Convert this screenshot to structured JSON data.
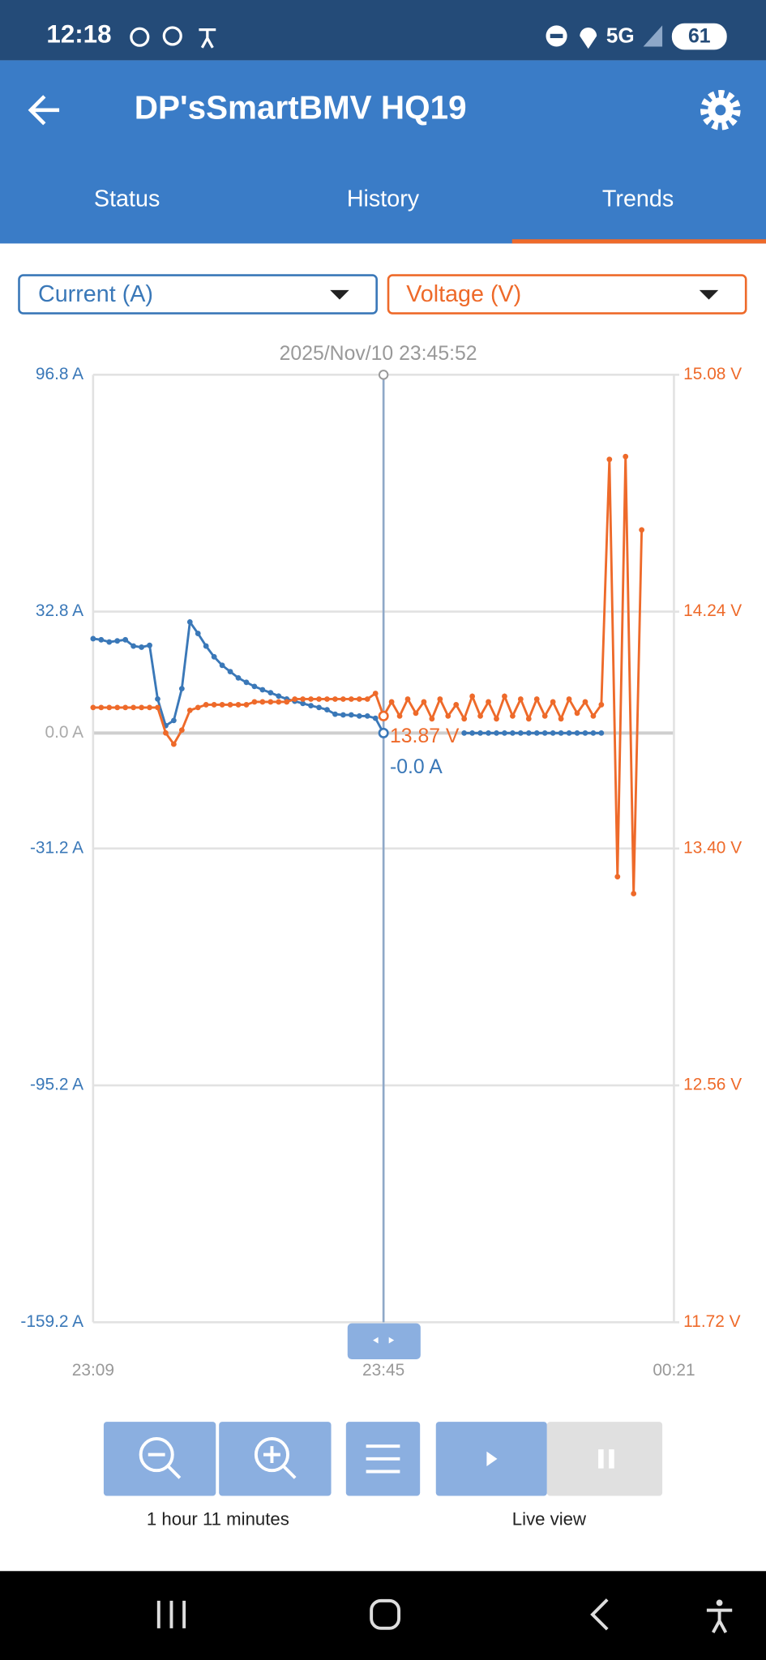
{
  "status_bar": {
    "time": "12:18",
    "network": "5G",
    "battery": "61"
  },
  "app_bar": {
    "title": "DP'sSmartBMV HQ19"
  },
  "tabs": [
    "Status",
    "History",
    "Trends"
  ],
  "chart_data": {
    "type": "line",
    "x": [
      "23:09",
      "23:10",
      "23:11",
      "23:12",
      "23:13",
      "23:14",
      "23:15",
      "23:16",
      "23:17",
      "23:18",
      "23:19",
      "23:20",
      "23:21",
      "23:22",
      "23:23",
      "23:24",
      "23:25",
      "23:26",
      "23:27",
      "23:28",
      "23:29",
      "23:30",
      "23:31",
      "23:32",
      "23:33",
      "23:34",
      "23:35",
      "23:36",
      "23:37",
      "23:38",
      "23:39",
      "23:40",
      "23:41",
      "23:42",
      "23:43",
      "23:44",
      "23:45",
      "23:46",
      "23:47",
      "23:48",
      "23:49",
      "23:50",
      "23:51",
      "23:52",
      "23:53",
      "23:54",
      "23:55",
      "23:56",
      "23:57",
      "23:58",
      "23:59",
      "00:00",
      "00:01",
      "00:02",
      "00:03",
      "00:04",
      "00:05",
      "00:06",
      "00:07",
      "00:08",
      "00:09",
      "00:10",
      "00:11",
      "00:12",
      "00:13",
      "00:14",
      "00:15",
      "00:16",
      "00:17"
    ],
    "xlim": [
      "23:09",
      "00:21"
    ],
    "xticks": [
      "23:09",
      "23:45",
      "00:21"
    ],
    "ylim": [
      -159.2,
      96.8
    ],
    "yticks": [
      {
        "value": 96.8,
        "label": "96.8 A"
      },
      {
        "value": 32.8,
        "label": "32.8 A"
      },
      {
        "value": 0.0,
        "label": "0.0 A"
      },
      {
        "value": -31.2,
        "label": "-31.2 A"
      },
      {
        "value": -95.2,
        "label": "-95.2 A"
      },
      {
        "value": -159.2,
        "label": "-159.2 A"
      }
    ],
    "y2lim": [
      11.72,
      15.08
    ],
    "y2ticks": [
      {
        "value": 15.08,
        "label": "15.08 V"
      },
      {
        "value": 14.24,
        "label": "14.24 V"
      },
      {
        "value": 13.4,
        "label": "13.40 V"
      },
      {
        "value": 12.56,
        "label": "12.56 V"
      },
      {
        "value": 11.72,
        "label": "11.72 V"
      }
    ],
    "grid": true,
    "series": [
      {
        "name": "Current (A)",
        "color": "#3a78b8",
        "values": [
          25.5,
          25.2,
          24.6,
          24.9,
          25.2,
          23.5,
          23.2,
          23.7,
          9.2,
          2.0,
          3.4,
          12.0,
          30.0,
          26.9,
          23.5,
          20.6,
          18.3,
          16.6,
          14.9,
          13.7,
          12.6,
          11.7,
          10.9,
          10.0,
          9.2,
          8.6,
          8.0,
          7.4,
          6.9,
          6.3,
          5.1,
          4.9,
          4.9,
          4.6,
          4.6,
          4.0,
          -0.0,
          null,
          null,
          null,
          null,
          null,
          null,
          null,
          null,
          null,
          0,
          0,
          0,
          0,
          0,
          0,
          0,
          0,
          0,
          0,
          0,
          0,
          0,
          0,
          0,
          0,
          0,
          0,
          null,
          null,
          null,
          null,
          null
        ]
      },
      {
        "name": "Voltage (V)",
        "color": "#ee6a2a",
        "axis": "y2",
        "values": [
          13.9,
          13.9,
          13.9,
          13.9,
          13.9,
          13.9,
          13.9,
          13.9,
          13.9,
          13.81,
          13.77,
          13.82,
          13.89,
          13.9,
          13.91,
          13.91,
          13.91,
          13.91,
          13.91,
          13.91,
          13.92,
          13.92,
          13.92,
          13.92,
          13.92,
          13.93,
          13.93,
          13.93,
          13.93,
          13.93,
          13.93,
          13.93,
          13.93,
          13.93,
          13.93,
          13.95,
          13.87,
          13.92,
          13.87,
          13.93,
          13.88,
          13.92,
          13.86,
          13.93,
          13.87,
          13.91,
          13.86,
          13.94,
          13.87,
          13.92,
          13.86,
          13.94,
          13.87,
          13.93,
          13.86,
          13.93,
          13.87,
          13.92,
          13.86,
          13.93,
          13.88,
          13.92,
          13.87,
          13.91,
          14.78,
          13.3,
          14.79,
          13.24,
          14.53
        ]
      }
    ],
    "cursor": {
      "label": "2025/Nov/10 23:45:52",
      "x": "23:45",
      "values": [
        -0.0,
        13.87
      ],
      "value_labels": [
        "-0.0 A",
        "13.87 V"
      ]
    }
  },
  "controls": {
    "zoom_label": "1 hour 11 minutes",
    "live_label": "Live view"
  }
}
